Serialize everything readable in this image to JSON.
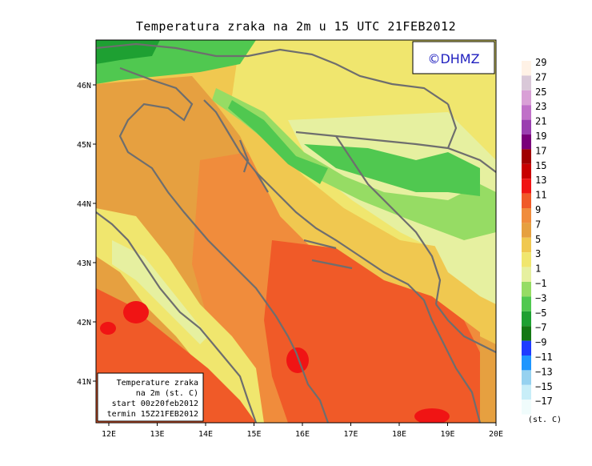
{
  "title": "Temperatura zraka na 2m u 15 UTC 21FEB2012",
  "copyright": "©DHMZ",
  "info_box": {
    "line1": "Temperature zraka",
    "line2": "na 2m (st. C)",
    "line3": "start 00z20feb2012",
    "line4": "termin 15Z21FEB2012"
  },
  "x_ticks": [
    "12E",
    "13E",
    "14E",
    "15E",
    "16E",
    "17E",
    "18E",
    "19E",
    "20E"
  ],
  "y_ticks": [
    "46N",
    "45N",
    "44N",
    "43N",
    "42N",
    "41N"
  ],
  "legend": {
    "unit": "(st. C)",
    "labels": [
      "29",
      "27",
      "25",
      "23",
      "21",
      "19",
      "17",
      "15",
      "13",
      "11",
      "9",
      "7",
      "5",
      "3",
      "1",
      "−1",
      "−3",
      "−5",
      "−7",
      "−9",
      "−11",
      "−13",
      "−15",
      "−17"
    ],
    "colors": [
      "#fff2e6",
      "#d9c8d8",
      "#d9a0d6",
      "#c070c8",
      "#9a3fb0",
      "#7a007a",
      "#a00000",
      "#c80000",
      "#f01414",
      "#f05a28",
      "#f08c3c",
      "#e6a040",
      "#f0c850",
      "#f0e66e",
      "#e6f0a0",
      "#96dc64",
      "#50c850",
      "#1ea032",
      "#147814",
      "#1e3cff",
      "#1e96ff",
      "#96d2f0",
      "#c8eef8",
      "#f0fcfc"
    ]
  }
}
